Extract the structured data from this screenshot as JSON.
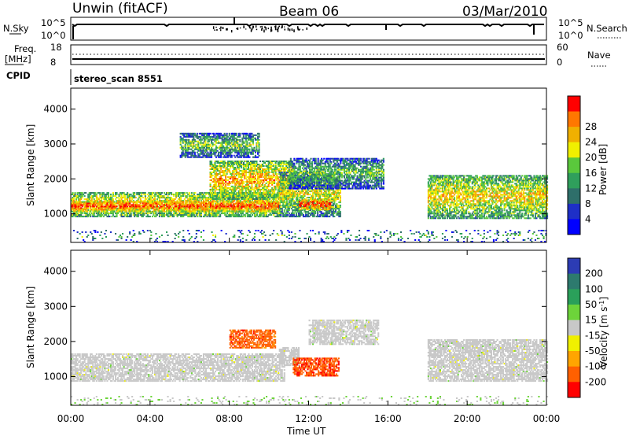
{
  "header": {
    "station": "Unwin (fitACF)",
    "beam": "Beam 06",
    "date": "03/Mar/2010"
  },
  "panels": {
    "sky": {
      "left_title": "N.Sky",
      "left_ticks": [
        "10^5",
        "10^0"
      ],
      "right_title": "N.Search",
      "right_ticks": [
        "10^5",
        "10^0"
      ]
    },
    "freq": {
      "left_title_1": "Freq.",
      "left_title_2": "[MHz]",
      "left_ticks": [
        "18",
        "8"
      ],
      "right_title": "Nave",
      "right_ticks": [
        "60",
        "0"
      ]
    },
    "cpid": {
      "label": "CPID",
      "value": "stereo_scan 8551"
    }
  },
  "chart_data": [
    {
      "type": "heatmap",
      "name": "power",
      "ylabel": "Slant Range [km]",
      "ylim": [
        180,
        4600
      ],
      "yticks": [
        1000,
        2000,
        3000,
        4000
      ],
      "xlim": [
        0,
        24
      ],
      "colorbar": {
        "label": "Power [dB]",
        "ticks": [
          "4",
          "8",
          "12",
          "16",
          "20",
          "24",
          "28"
        ],
        "colors": [
          "#0000ff",
          "#1e2fc7",
          "#2e6f6a",
          "#2f9f5c",
          "#5ac83c",
          "#f0f000",
          "#f0b000",
          "#ff7700",
          "#ff0000"
        ]
      },
      "regions": [
        {
          "t0": 0.0,
          "t1": 10.5,
          "r0": 900,
          "r1": 1600,
          "level": 0.55
        },
        {
          "t0": 0.0,
          "t1": 10.5,
          "r0": 1050,
          "r1": 1350,
          "level": 0.85
        },
        {
          "t0": 7.0,
          "t1": 11.2,
          "r0": 1400,
          "r1": 2500,
          "level": 0.6
        },
        {
          "t0": 5.5,
          "t1": 9.5,
          "r0": 2600,
          "r1": 3300,
          "level": 0.25
        },
        {
          "t0": 10.5,
          "t1": 13.6,
          "r0": 900,
          "r1": 2200,
          "level": 0.4
        },
        {
          "t0": 11.5,
          "t1": 13.1,
          "r0": 1100,
          "r1": 1400,
          "level": 0.9
        },
        {
          "t0": 11.0,
          "t1": 15.8,
          "r0": 1700,
          "r1": 2600,
          "level": 0.2
        },
        {
          "t0": 18.0,
          "t1": 24.0,
          "r0": 850,
          "r1": 2100,
          "level": 0.5
        },
        {
          "t0": 0.0,
          "t1": 24.0,
          "r0": 180,
          "r1": 500,
          "level": 0.15
        }
      ]
    },
    {
      "type": "heatmap",
      "name": "velocity",
      "ylabel": "Slant Range [km]",
      "ylim": [
        180,
        4600
      ],
      "yticks": [
        1000,
        2000,
        3000,
        4000
      ],
      "xlim": [
        0,
        24
      ],
      "colorbar": {
        "label": "Velocity [m s^-1]",
        "ticks": [
          "200",
          "100",
          "50",
          "15",
          "-15",
          "-50",
          "-100",
          "-200"
        ],
        "colors": [
          "#2c3cb4",
          "#2d7a6e",
          "#2aa05a",
          "#6dd43a",
          "#c8c8c8",
          "#f0f000",
          "#ffa500",
          "#ff6000",
          "#ff0000"
        ]
      },
      "regions": [
        {
          "t0": 0.0,
          "t1": 10.8,
          "r0": 850,
          "r1": 1650,
          "value": 0
        },
        {
          "t0": 10.5,
          "t1": 11.5,
          "r0": 1300,
          "r1": 1800,
          "value": 0
        },
        {
          "t0": 8.0,
          "t1": 10.3,
          "r0": 1800,
          "r1": 2300,
          "value": -150
        },
        {
          "t0": 11.2,
          "t1": 13.5,
          "r0": 1000,
          "r1": 1500,
          "value": -170
        },
        {
          "t0": 12.0,
          "t1": 15.5,
          "r0": 1900,
          "r1": 2600,
          "value": 0
        },
        {
          "t0": 18.0,
          "t1": 24.0,
          "r0": 850,
          "r1": 2050,
          "value": 0
        },
        {
          "t0": 0.0,
          "t1": 24.0,
          "r0": 180,
          "r1": 450,
          "value": 10
        }
      ]
    }
  ],
  "xaxis": {
    "ticks": [
      "00:00",
      "04:00",
      "08:00",
      "12:00",
      "16:00",
      "20:00",
      "00:00"
    ],
    "label": "Time UT"
  }
}
